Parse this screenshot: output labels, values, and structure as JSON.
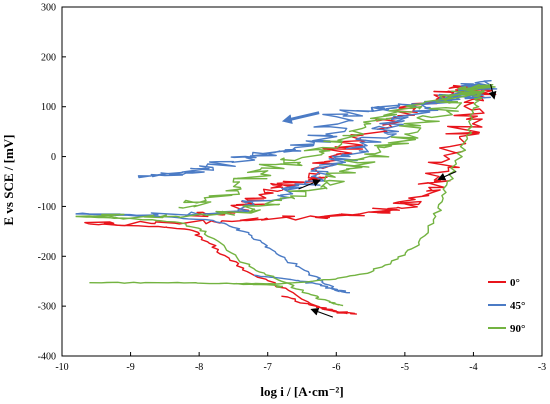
{
  "chart_data": {
    "type": "line",
    "title": "",
    "xlabel": "log i / [A·cm⁻²]",
    "ylabel": "E vs SCE / [mV]",
    "xlim": [
      -10,
      -3
    ],
    "ylim": [
      -400,
      300
    ],
    "xticks": [
      "-10",
      "-9",
      "-8",
      "-7",
      "-6",
      "-5",
      "-4",
      "-3"
    ],
    "yticks": [
      "300",
      "200",
      "100",
      "0",
      "-100",
      "-200",
      "-300",
      "-400"
    ],
    "grid": false,
    "legend_position": "right",
    "series": [
      {
        "name": "0°",
        "color": "#e8141b",
        "forward": [
          [
            -6.8,
            -280
          ],
          [
            -6.4,
            -297
          ],
          [
            -6.0,
            -310
          ],
          [
            -5.7,
            -316
          ]
        ],
        "segments": [
          [
            [
              -5.85,
              -316
            ],
            [
              -6.2,
              -305
            ],
            [
              -6.7,
              -268
            ],
            [
              -7.2,
              -238
            ],
            [
              -7.55,
              -208
            ],
            [
              -7.85,
              -174
            ],
            [
              -8.1,
              -148
            ],
            [
              -8.6,
              -140
            ],
            [
              -9.6,
              -135
            ]
          ],
          [
            [
              -9.6,
              -135
            ],
            [
              -8.7,
              -134
            ],
            [
              -7.8,
              -130
            ],
            [
              -7.0,
              -125
            ],
            [
              -6.3,
              -122
            ],
            [
              -5.8,
              -118
            ],
            [
              -5.4,
              -113
            ],
            [
              -5.1,
              -102
            ],
            [
              -4.85,
              -86
            ],
            [
              -4.65,
              -62
            ],
            [
              -4.5,
              -40
            ],
            [
              -4.35,
              -5
            ],
            [
              -4.2,
              40
            ],
            [
              -4.1,
              75
            ],
            [
              -4.0,
              108
            ],
            [
              -3.93,
              128
            ],
            [
              -3.95,
              138
            ],
            [
              -4.1,
              140
            ],
            [
              -4.3,
              130
            ],
            [
              -4.5,
              118
            ],
            [
              -4.8,
              104
            ],
            [
              -5.1,
              82
            ],
            [
              -5.4,
              55
            ],
            [
              -5.65,
              35
            ],
            [
              -5.9,
              15
            ],
            [
              -6.1,
              -10
            ],
            [
              -6.3,
              -35
            ],
            [
              -6.5,
              -52
            ],
            [
              -6.8,
              -58
            ],
            [
              -7.0,
              -72
            ],
            [
              -7.2,
              -95
            ],
            [
              -7.6,
              -112
            ],
            [
              -8.2,
              -118
            ]
          ]
        ]
      },
      {
        "name": "45°",
        "color": "#4b7bc5",
        "forward": [
          [
            -7.2,
            -238
          ],
          [
            -6.7,
            -246
          ],
          [
            -6.3,
            -255
          ],
          [
            -6.05,
            -266
          ],
          [
            -5.8,
            -273
          ]
        ],
        "segments": [
          [
            [
              -5.95,
              -271
            ],
            [
              -6.2,
              -250
            ],
            [
              -6.5,
              -225
            ],
            [
              -6.8,
              -200
            ],
            [
              -7.05,
              -175
            ],
            [
              -7.35,
              -150
            ],
            [
              -7.8,
              -128
            ],
            [
              -8.6,
              -120
            ],
            [
              -9.8,
              -115
            ]
          ],
          [
            [
              -9.8,
              -115
            ],
            [
              -8.6,
              -117
            ],
            [
              -7.6,
              -112
            ],
            [
              -7.2,
              -97
            ],
            [
              -6.85,
              -78
            ],
            [
              -6.55,
              -58
            ],
            [
              -6.3,
              -38
            ],
            [
              -6.05,
              -18
            ],
            [
              -5.8,
              0
            ],
            [
              -5.55,
              22
            ],
            [
              -5.3,
              48
            ],
            [
              -5.05,
              70
            ],
            [
              -4.75,
              92
            ],
            [
              -4.45,
              110
            ],
            [
              -4.2,
              128
            ],
            [
              -4.0,
              140
            ],
            [
              -3.9,
              150
            ],
            [
              -3.95,
              118
            ],
            [
              -4.2,
              122
            ],
            [
              -4.5,
              108
            ],
            [
              -4.9,
              102
            ],
            [
              -5.3,
              97
            ],
            [
              -5.7,
              92
            ],
            [
              -6.0,
              80
            ],
            [
              -6.15,
              45
            ],
            [
              -6.3,
              30
            ],
            [
              -6.6,
              18
            ],
            [
              -6.9,
              8
            ],
            [
              -7.2,
              0
            ],
            [
              -7.5,
              -10
            ],
            [
              -7.8,
              -22
            ],
            [
              -8.1,
              -33
            ],
            [
              -8.5,
              -38
            ],
            [
              -8.7,
              -39
            ]
          ]
        ]
      },
      {
        "name": "90°",
        "color": "#73b341",
        "forward": [
          [
            -7.5,
            -255
          ],
          [
            -6.8,
            -255
          ],
          [
            -6.1,
            -247
          ],
          [
            -5.5,
            -232
          ],
          [
            -5.1,
            -205
          ],
          [
            -4.8,
            -172
          ],
          [
            -4.55,
            -120
          ],
          [
            -4.4,
            -72
          ],
          [
            -4.25,
            -15
          ],
          [
            -4.1,
            42
          ],
          [
            -4.0,
            88
          ],
          [
            -3.92,
            112
          ],
          [
            -3.95,
            125
          ]
        ],
        "segments": [
          [
            [
              -5.9,
              -299
            ],
            [
              -6.1,
              -292
            ],
            [
              -6.4,
              -275
            ],
            [
              -6.8,
              -250
            ],
            [
              -7.2,
              -225
            ],
            [
              -7.6,
              -188
            ],
            [
              -7.9,
              -150
            ],
            [
              -8.3,
              -132
            ],
            [
              -9.0,
              -124
            ],
            [
              -9.8,
              -120
            ]
          ],
          [
            [
              -9.8,
              -120
            ],
            [
              -8.8,
              -121
            ],
            [
              -7.9,
              -118
            ],
            [
              -7.2,
              -105
            ],
            [
              -6.8,
              -88
            ],
            [
              -6.4,
              -68
            ],
            [
              -6.1,
              -48
            ],
            [
              -5.85,
              -25
            ],
            [
              -5.6,
              -5
            ],
            [
              -5.3,
              18
            ],
            [
              -5.0,
              45
            ],
            [
              -4.7,
              72
            ],
            [
              -4.4,
              98
            ],
            [
              -4.15,
              120
            ],
            [
              -3.95,
              135
            ],
            [
              -3.92,
              142
            ],
            [
              -4.05,
              132
            ],
            [
              -4.3,
              122
            ],
            [
              -4.7,
              110
            ],
            [
              -5.1,
              90
            ],
            [
              -5.5,
              66
            ],
            [
              -5.9,
              42
            ],
            [
              -6.2,
              18
            ],
            [
              -6.5,
              -2
            ],
            [
              -6.8,
              -15
            ],
            [
              -7.1,
              -35
            ],
            [
              -7.4,
              -62
            ],
            [
              -7.9,
              -88
            ],
            [
              -8.3,
              -102
            ]
          ],
          [
            [
              -9.6,
              -253
            ],
            [
              -8.6,
              -253
            ],
            [
              -7.6,
              -254
            ],
            [
              -6.9,
              -258
            ],
            [
              -6.8,
              -262
            ]
          ]
        ]
      }
    ],
    "annotations": [
      {
        "type": "arrow",
        "color": "#4b7bc5",
        "from": [
          -6.25,
          88
        ],
        "to": [
          -6.75,
          72
        ]
      },
      {
        "type": "arrow",
        "color": "#000000",
        "from": [
          -6.55,
          -65
        ],
        "to": [
          -6.25,
          -48
        ]
      },
      {
        "type": "arrow",
        "color": "#000000",
        "from": [
          -4.25,
          -30
        ],
        "to": [
          -4.5,
          -45
        ]
      },
      {
        "type": "arrow",
        "color": "#000000",
        "from": [
          -3.75,
          145
        ],
        "to": [
          -3.7,
          118
        ]
      },
      {
        "type": "arrow",
        "color": "#000000",
        "from": [
          -6.05,
          -322
        ],
        "to": [
          -6.35,
          -307
        ]
      }
    ]
  }
}
